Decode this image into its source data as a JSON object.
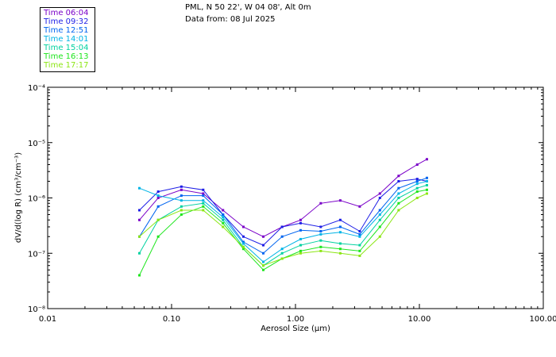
{
  "header": {
    "line1": "PML, N 50 22', W 04 08', Alt 0m",
    "line2": "Data from: 08 Jul 2025"
  },
  "legend": [
    {
      "label": "Time 06:04",
      "color": "#7a00c8"
    },
    {
      "label": "Time 09:32",
      "color": "#1e1ee6"
    },
    {
      "label": "Time 12:51",
      "color": "#0064f0"
    },
    {
      "label": "Time 14:01",
      "color": "#00b4e6"
    },
    {
      "label": "Time 15:04",
      "color": "#00d2a0"
    },
    {
      "label": "Time 16:13",
      "color": "#1ee61e"
    },
    {
      "label": "Time 17:17",
      "color": "#8ce614"
    }
  ],
  "chart_data": {
    "type": "line",
    "xscale": "log",
    "yscale": "log",
    "xlabel": "Aerosol Size (μm)",
    "ylabel": "dV/d(log R) (cm³/cm⁻³)",
    "xlim": [
      0.01,
      100
    ],
    "ylim": [
      1e-08,
      0.0001
    ],
    "xticks": [
      "0.01",
      "0.10",
      "1.00",
      "10.00",
      "100.00"
    ],
    "yticks": [
      "10⁻⁸",
      "10⁻⁷",
      "10⁻⁶",
      "10⁻⁵",
      "10⁻⁴"
    ],
    "x": [
      0.055,
      0.078,
      0.12,
      0.18,
      0.26,
      0.38,
      0.55,
      0.78,
      1.1,
      1.6,
      2.3,
      3.3,
      4.8,
      6.8,
      9.6,
      11.5
    ],
    "series": [
      {
        "name": "Time 06:04",
        "color": "#7a00c8",
        "values": [
          4e-07,
          1e-06,
          1.4e-06,
          1.2e-06,
          6e-07,
          3e-07,
          2e-07,
          3e-07,
          4e-07,
          8e-07,
          9e-07,
          7e-07,
          1.2e-06,
          2.5e-06,
          4e-06,
          5e-06
        ]
      },
      {
        "name": "Time 09:32",
        "color": "#1e1ee6",
        "values": [
          6e-07,
          1.3e-06,
          1.6e-06,
          1.4e-06,
          5e-07,
          2e-07,
          1.4e-07,
          3e-07,
          3.5e-07,
          3e-07,
          4e-07,
          2.5e-07,
          1e-06,
          2e-06,
          2.2e-06,
          2e-06
        ]
      },
      {
        "name": "Time 12:51",
        "color": "#0064f0",
        "values": [
          2e-07,
          7e-07,
          1.1e-06,
          1.1e-06,
          5e-07,
          1.6e-07,
          1e-07,
          2e-07,
          2.6e-07,
          2.5e-07,
          3e-07,
          2.2e-07,
          6e-07,
          1.5e-06,
          2e-06,
          2.3e-06
        ]
      },
      {
        "name": "Time 14:01",
        "color": "#00b4e6",
        "values": [
          1.5e-06,
          1.1e-06,
          9e-07,
          9e-07,
          4.5e-07,
          1.5e-07,
          7e-08,
          1.2e-07,
          1.8e-07,
          2.2e-07,
          2.4e-07,
          2e-07,
          5e-07,
          1.2e-06,
          1.8e-06,
          2e-06
        ]
      },
      {
        "name": "Time 15:04",
        "color": "#00d2a0",
        "values": [
          1e-07,
          4e-07,
          7e-07,
          8e-07,
          4e-07,
          1.3e-07,
          6e-08,
          1e-07,
          1.4e-07,
          1.7e-07,
          1.5e-07,
          1.4e-07,
          4e-07,
          1e-06,
          1.5e-06,
          1.7e-06
        ]
      },
      {
        "name": "Time 16:13",
        "color": "#1ee61e",
        "values": [
          4e-08,
          2e-07,
          5e-07,
          7e-07,
          3.5e-07,
          1.2e-07,
          5e-08,
          8e-08,
          1.1e-07,
          1.3e-07,
          1.2e-07,
          1.1e-07,
          3e-07,
          8e-07,
          1.3e-06,
          1.4e-06
        ]
      },
      {
        "name": "Time 17:17",
        "color": "#8ce614",
        "values": [
          2e-07,
          4e-07,
          6e-07,
          6e-07,
          3e-07,
          1.3e-07,
          6e-08,
          8e-08,
          1e-07,
          1.1e-07,
          1e-07,
          9e-08,
          2e-07,
          6e-07,
          1e-06,
          1.2e-06
        ]
      }
    ]
  }
}
